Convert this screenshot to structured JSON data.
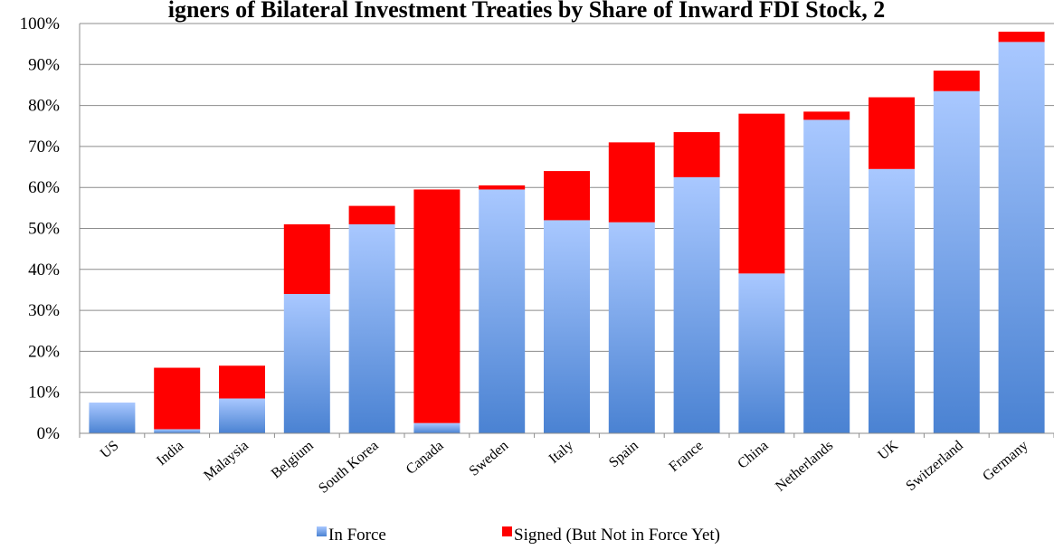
{
  "chart_data": {
    "type": "bar",
    "stacked": true,
    "title": "igners of Bilateral Investment Treaties by Share of Inward FDI Stock, 2",
    "xlabel": "",
    "ylabel": "",
    "ylim": [
      0,
      100
    ],
    "yticks": [
      "0%",
      "10%",
      "20%",
      "30%",
      "40%",
      "50%",
      "60%",
      "70%",
      "80%",
      "90%",
      "100%"
    ],
    "grid": true,
    "legend_position": "bottom",
    "categories": [
      "US",
      "India",
      "Malaysia",
      "Belgium",
      "South Korea",
      "Canada",
      "Sweden",
      "Italy",
      "Spain",
      "France",
      "China",
      "Netherlands",
      "UK",
      "Switzerland",
      "Germany"
    ],
    "series": [
      {
        "name": "In Force",
        "color": "#4a85d4",
        "values": [
          7.5,
          1,
          8.5,
          34,
          51,
          2.5,
          59.5,
          52,
          51.5,
          62.5,
          39,
          76.5,
          64.5,
          83.5,
          95.5
        ]
      },
      {
        "name": "Signed (But Not in Force Yet)",
        "color": "#ff0000",
        "values": [
          0,
          15,
          8,
          17,
          4.5,
          57,
          1,
          12,
          19.5,
          11,
          39,
          2,
          17.5,
          5,
          2.5
        ]
      }
    ]
  }
}
